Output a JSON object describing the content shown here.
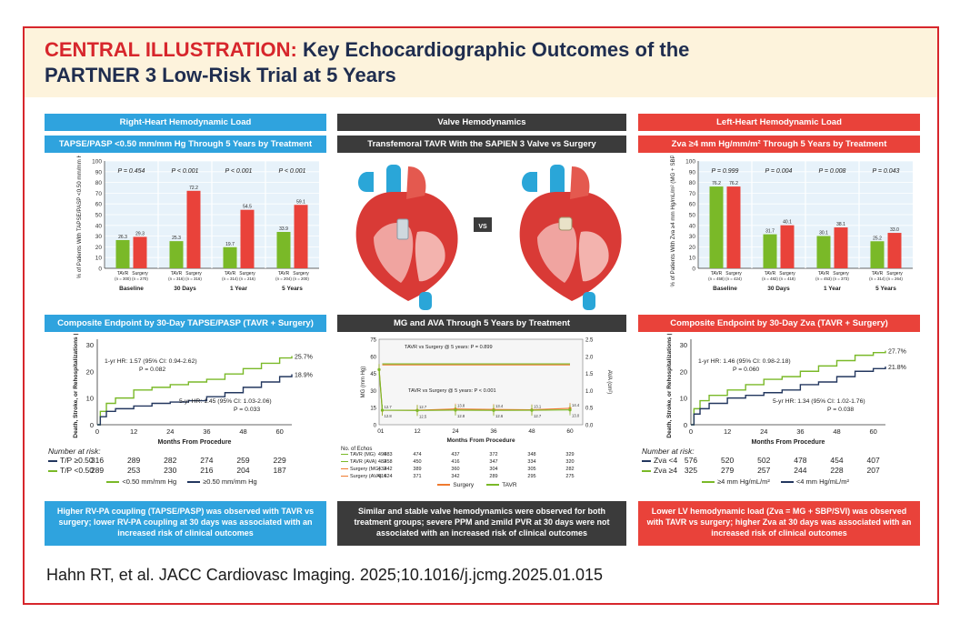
{
  "title": {
    "prefix": "CENTRAL ILLUSTRATION:",
    "line1": "Key Echocardiographic Outcomes of the",
    "line2": "PARTNER 3 Low-Risk Trial at 5 Years"
  },
  "citation": "Hahn RT, et al. JACC Cardiovasc Imaging. 2025;10.1016/j.jcmg.2025.01.015",
  "colors": {
    "green": "#7ab928",
    "red": "#e9423a",
    "orange": "#ef7a2f",
    "navy": "#23375f",
    "blue": "#2fa3de"
  },
  "panels": {
    "left": {
      "header": "Right-Heart Hemodynamic Load",
      "subheader": "TAPSE/PASP <0.50 mm/mm Hg Through 5 Years by Treatment",
      "composite_header": "Composite Endpoint by 30-Day TAPSE/PASP (TAVR + Surgery)",
      "footer": "Higher RV-PA coupling (TAPSE/PASP) was observed with TAVR vs surgery; lower RV-PA coupling at 30 days was associated with an increased risk of clinical outcomes"
    },
    "middle": {
      "header": "Valve Hemodynamics",
      "subheader": "Transfemoral TAVR With the SAPIEN 3 Valve vs Surgery",
      "vs": "VS",
      "mg_header": "MG and AVA Through 5 Years by Treatment",
      "footer": "Similar and stable valve hemodynamics were observed for both treatment groups; severe PPM and ≥mild PVR at 30 days were not associated with an increased risk of clinical outcomes"
    },
    "right": {
      "header": "Left-Heart Hemodynamic Load",
      "subheader": "Zva ≥4 mm Hg/mm/m² Through 5 Years by Treatment",
      "composite_header": "Composite Endpoint by 30-Day Zva (TAVR + Surgery)",
      "footer": "Lower LV hemodynamic load (Zva = MG + SBP/SVI) was observed with TAVR vs surgery; higher Zva at 30 days was associated with an increased risk of clinical outcomes"
    }
  },
  "chart_data": [
    {
      "id": "tapse_bar",
      "type": "bar",
      "ylabel": "% of Patients With TAPSE/PASP <0.50 mm/mm Hg",
      "ylim": [
        0,
        100
      ],
      "yticks": [
        0,
        10,
        20,
        30,
        40,
        50,
        60,
        70,
        80,
        90,
        100
      ],
      "groups": [
        {
          "label": "Baseline",
          "p": "P = 0.454",
          "bars": [
            {
              "name": "TAVR",
              "n": "(n = 300)",
              "value": 26.3
            },
            {
              "name": "Surgery",
              "n": "(n = 270)",
              "value": 29.3
            }
          ]
        },
        {
          "label": "30 Days",
          "p": "P < 0.001",
          "bars": [
            {
              "name": "TAVR",
              "n": "(n = 316)",
              "value": 25.3
            },
            {
              "name": "Surgery",
              "n": "(n = 316)",
              "value": 72.2
            }
          ]
        },
        {
          "label": "1 Year",
          "p": "P < 0.001",
          "bars": [
            {
              "name": "TAVR",
              "n": "(n = 314)",
              "value": 19.7
            },
            {
              "name": "Surgery",
              "n": "(n = 216)",
              "value": 54.5
            }
          ]
        },
        {
          "label": "5 Years",
          "p": "P < 0.001",
          "bars": [
            {
              "name": "TAVR",
              "n": "(n = 204)",
              "value": 33.9
            },
            {
              "name": "Surgery",
              "n": "(n = 200)",
              "value": 59.1
            }
          ]
        }
      ]
    },
    {
      "id": "zva_bar",
      "type": "bar",
      "ylabel": "% of Patients With Zva ≥4 mm Hg/mL/m² (MG + SBP/SVI)",
      "ylim": [
        0,
        100
      ],
      "yticks": [
        0,
        10,
        20,
        30,
        40,
        50,
        60,
        70,
        80,
        90,
        100
      ],
      "groups": [
        {
          "label": "Baseline",
          "p": "P = 0.999",
          "bars": [
            {
              "name": "TAVR",
              "n": "(n = 458)",
              "value": 76.2
            },
            {
              "name": "Surgery",
              "n": "(n = 424)",
              "value": 76.2
            }
          ]
        },
        {
          "label": "30 Days",
          "p": "P = 0.004",
          "bars": [
            {
              "name": "TAVR",
              "n": "(n = 482)",
              "value": 31.7
            },
            {
              "name": "Surgery",
              "n": "(n = 418)",
              "value": 40.1
            }
          ]
        },
        {
          "label": "1 Year",
          "p": "P = 0.008",
          "bars": [
            {
              "name": "TAVR",
              "n": "(n = 453)",
              "value": 30.1
            },
            {
              "name": "Surgery",
              "n": "(n = 373)",
              "value": 38.1
            }
          ]
        },
        {
          "label": "5 Years",
          "p": "P = 0.043",
          "bars": [
            {
              "name": "TAVR",
              "n": "(n = 314)",
              "value": 25.2
            },
            {
              "name": "Surgery",
              "n": "(n = 264)",
              "value": 33.0
            }
          ]
        }
      ]
    },
    {
      "id": "tapse_km",
      "type": "line",
      "xlabel": "Months From Procedure",
      "ylabel": "Death, Stroke, or Rehospitalizations (%)",
      "xlim": [
        0,
        64
      ],
      "ylim": [
        0,
        32
      ],
      "xticks": [
        0,
        12,
        24,
        36,
        48,
        60
      ],
      "yticks": [
        0,
        10,
        20,
        30
      ],
      "annotations": [
        "1-yr HR: 1.57 (95% CI: 0.94-2.62)",
        "P = 0.082",
        "5-yr HR: 1.45 (95% CI: 1.03-2.06)",
        "P = 0.033"
      ],
      "series": [
        {
          "name": "<0.50 mm/mm Hg",
          "end_label": "25.7%",
          "x": [
            0,
            1,
            3,
            6,
            12,
            18,
            24,
            30,
            36,
            42,
            48,
            54,
            60,
            64
          ],
          "y": [
            0,
            5,
            8,
            10,
            13,
            14,
            15,
            16,
            17,
            19,
            21,
            23,
            25,
            25.7
          ]
        },
        {
          "name": "≥0.50 mm/mm Hg",
          "end_label": "18.9%",
          "x": [
            0,
            1,
            3,
            6,
            12,
            18,
            24,
            30,
            36,
            42,
            48,
            54,
            60,
            64
          ],
          "y": [
            0,
            3,
            5,
            6,
            7,
            8,
            8.5,
            9,
            10.5,
            12,
            14,
            16,
            18,
            18.9
          ]
        }
      ],
      "risk": {
        "title": "Number at risk:",
        "rows": [
          {
            "label": "T/P ≥0.50",
            "values": [
              "316",
              "289",
              "282",
              "274",
              "259",
              "229"
            ]
          },
          {
            "label": "T/P <0.50",
            "values": [
              "289",
              "253",
              "230",
              "216",
              "204",
              "187"
            ]
          }
        ]
      }
    },
    {
      "id": "mg_ava",
      "type": "line",
      "xlabel": "Months From Procedure",
      "ylabel": "MG (mm Hg)",
      "y2label": "AVA (cm²)",
      "xlim": [
        0,
        64
      ],
      "ylim": [
        0,
        75
      ],
      "y2lim": [
        0,
        2.5
      ],
      "xticks": [
        0,
        1,
        12,
        24,
        36,
        48,
        60
      ],
      "yticks": [
        0,
        15,
        30,
        45,
        60,
        75
      ],
      "y2ticks": [
        0.0,
        0.5,
        1.0,
        1.5,
        2.0,
        2.5
      ],
      "annotations": [
        "TAVR vs Surgery @ 5 years: P = 0.899",
        "TAVR vs Surgery @ 5 years: P < 0.001"
      ],
      "series": [
        {
          "name": "Surgery",
          "x": [
            0,
            1,
            12,
            24,
            36,
            48,
            60
          ],
          "y": [
            48.4,
            12.7,
            12.7,
            13.8,
            13.4,
            13.1,
            14.4
          ]
        },
        {
          "name": "TAVR",
          "x": [
            0,
            1,
            12,
            24,
            36,
            48,
            60
          ],
          "y": [
            48.4,
            12.8,
            12.5,
            12.8,
            12.6,
            12.7,
            13.0
          ]
        }
      ],
      "risk": {
        "title": "No. of Echos",
        "rows": [
          {
            "label": "TAVR (MG)",
            "values": [
              "483",
              "490",
              "474",
              "437",
              "372",
              "348",
              "329"
            ]
          },
          {
            "label": "TAVR (AVA)",
            "values": [
              "458",
              "482",
              "450",
              "416",
              "347",
              "334",
              "320"
            ]
          },
          {
            "label": "Surgery (MG)",
            "values": [
              "442",
              "432",
              "389",
              "360",
              "304",
              "305",
              "282"
            ]
          },
          {
            "label": "Surgery (AVA)",
            "values": [
              "424",
              "416",
              "371",
              "342",
              "289",
              "295",
              "275"
            ]
          }
        ]
      }
    },
    {
      "id": "zva_km",
      "type": "line",
      "xlabel": "Months From Procedure",
      "ylabel": "Death, Stroke, or Rehospitalizations (%)",
      "xlim": [
        0,
        64
      ],
      "ylim": [
        0,
        32
      ],
      "xticks": [
        0,
        12,
        24,
        36,
        48,
        60
      ],
      "yticks": [
        0,
        10,
        20,
        30
      ],
      "annotations": [
        "1-yr HR: 1.46 (95% CI: 0.98-2.18)",
        "P = 0.060",
        "5-yr HR: 1.34 (95% CI: 1.02-1.76)",
        "P = 0.038"
      ],
      "series": [
        {
          "name": "≥4 mm Hg/mL/m²",
          "end_label": "27.7%",
          "x": [
            0,
            1,
            3,
            6,
            12,
            18,
            24,
            30,
            36,
            42,
            48,
            54,
            60,
            64
          ],
          "y": [
            0,
            6,
            9,
            11,
            13,
            15,
            17,
            18,
            20,
            22,
            24,
            26,
            27,
            27.7
          ]
        },
        {
          "name": "<4 mm Hg/mL/m²",
          "end_label": "21.8%",
          "x": [
            0,
            1,
            3,
            6,
            12,
            18,
            24,
            30,
            36,
            42,
            48,
            54,
            60,
            64
          ],
          "y": [
            0,
            4,
            6,
            8,
            10,
            11,
            12,
            13,
            15,
            16,
            18,
            20,
            21,
            21.8
          ]
        }
      ],
      "risk": {
        "title": "Number at risk:",
        "rows": [
          {
            "label": "Zva <4",
            "values": [
              "576",
              "520",
              "502",
              "478",
              "454",
              "407"
            ]
          },
          {
            "label": "Zva ≥4",
            "values": [
              "325",
              "279",
              "257",
              "244",
              "228",
              "207"
            ]
          }
        ]
      }
    }
  ]
}
